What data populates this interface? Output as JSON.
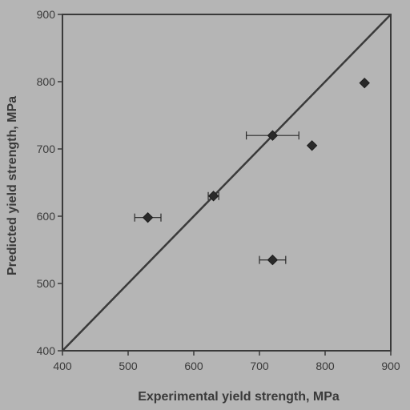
{
  "chart_data": {
    "type": "scatter",
    "title": "",
    "xlabel": "Experimental yield strength, MPa",
    "ylabel": "Predicted yield strength, MPa",
    "xlim": [
      400,
      900
    ],
    "ylim": [
      400,
      900
    ],
    "xticks": [
      400,
      500,
      600,
      700,
      800,
      900
    ],
    "yticks": [
      400,
      500,
      600,
      700,
      800,
      900
    ],
    "grid": false,
    "legend": "none",
    "reference_line": {
      "from": [
        400,
        400
      ],
      "to": [
        900,
        900
      ]
    },
    "points": [
      {
        "x": 530,
        "y": 598,
        "xerr": 20
      },
      {
        "x": 630,
        "y": 630,
        "xerr": 8
      },
      {
        "x": 720,
        "y": 720,
        "xerr": 40
      },
      {
        "x": 720,
        "y": 535,
        "xerr": 20
      },
      {
        "x": 780,
        "y": 705,
        "xerr": 0
      },
      {
        "x": 860,
        "y": 798,
        "xerr": 0
      }
    ],
    "colors": {
      "background": "#b5b5b5",
      "plot_area": "#b5b5b5",
      "marker": "#2a2a2a",
      "line": "#3a3a3a",
      "text": "#3a3a3a"
    }
  }
}
